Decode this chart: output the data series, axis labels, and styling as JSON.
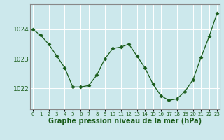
{
  "x": [
    0,
    1,
    2,
    3,
    4,
    5,
    6,
    7,
    8,
    9,
    10,
    11,
    12,
    13,
    14,
    15,
    16,
    17,
    18,
    19,
    20,
    21,
    22,
    23
  ],
  "y": [
    1024.0,
    1023.8,
    1023.5,
    1023.1,
    1022.7,
    1022.05,
    1022.05,
    1022.1,
    1022.45,
    1023.0,
    1023.35,
    1023.4,
    1023.5,
    1023.1,
    1022.7,
    1022.15,
    1021.75,
    1021.6,
    1021.65,
    1021.9,
    1022.3,
    1023.05,
    1023.75,
    1024.55
  ],
  "line_color": "#1a5c1a",
  "marker": "D",
  "marker_size": 2.5,
  "bg_color": "#cce8ec",
  "grid_color": "#ffffff",
  "xlabel": "Graphe pression niveau de la mer (hPa)",
  "xlabel_color": "#1a5c1a",
  "ylabel_ticks": [
    1022,
    1023,
    1024
  ],
  "ylim": [
    1021.3,
    1024.85
  ],
  "xlim": [
    -0.3,
    23.3
  ],
  "tick_label_color": "#1a5c1a",
  "spine_color": "#888888",
  "xlabel_fontsize": 7.0,
  "ytick_fontsize": 6.5,
  "xtick_fontsize": 5.0
}
